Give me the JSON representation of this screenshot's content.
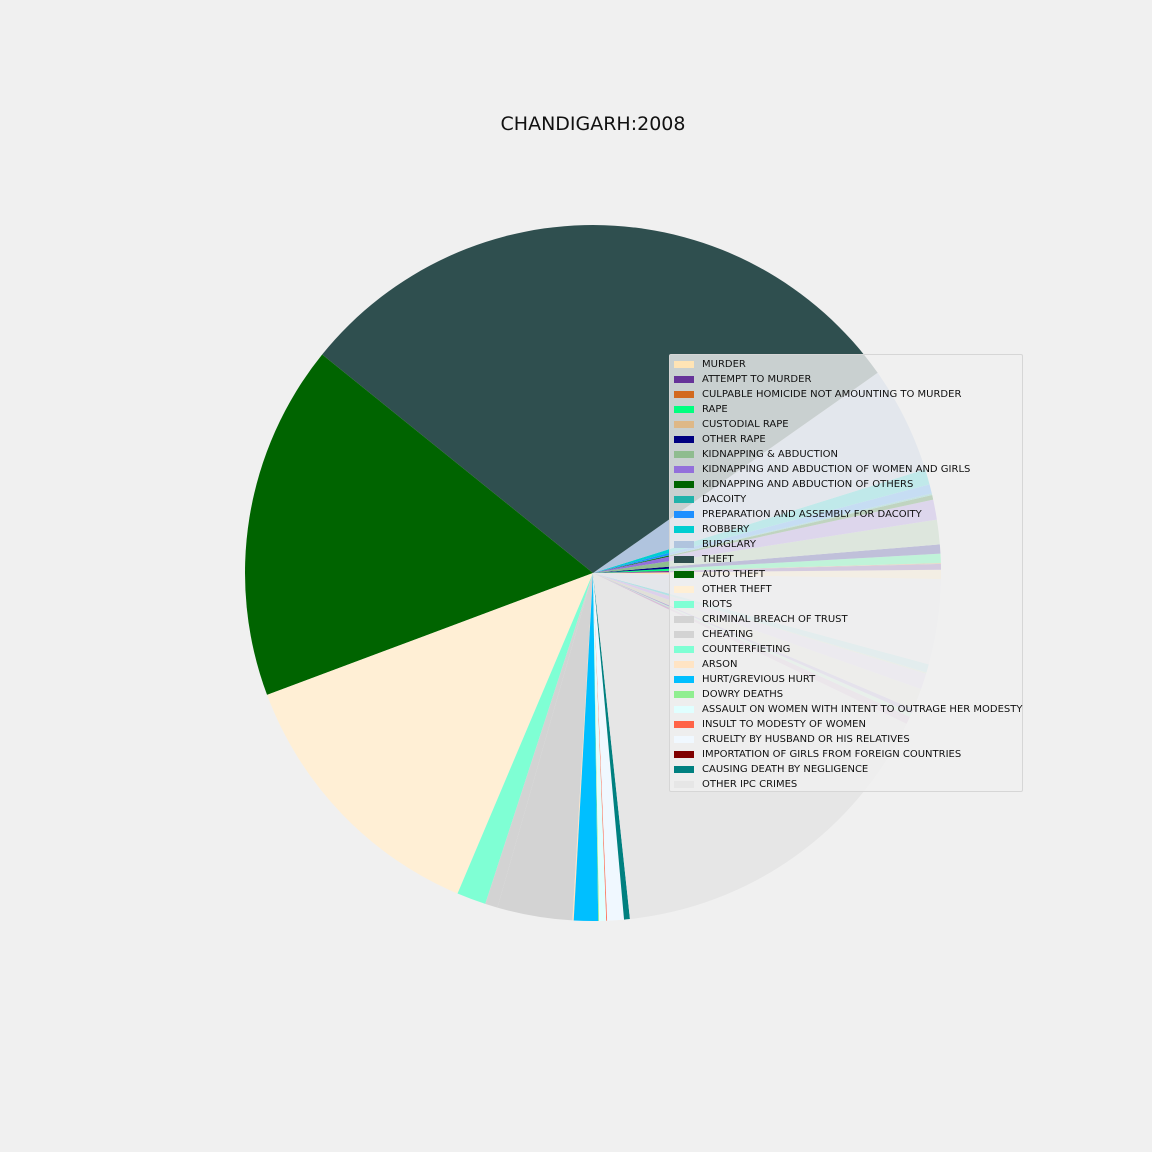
{
  "chart_data": {
    "type": "pie",
    "title": "CHANDIGARH:2008",
    "start_angle_deg": -1,
    "direction": "counterclockwise",
    "legend_position": "right",
    "slices": [
      {
        "label": "MURDER",
        "value": 22,
        "color": "#ffe4b5"
      },
      {
        "label": "ATTEMPT TO MURDER",
        "value": 14,
        "color": "#663399"
      },
      {
        "label": "CULPABLE HOMICIDE NOT AMOUNTING TO MURDER",
        "value": 2,
        "color": "#d2691e"
      },
      {
        "label": "RAPE",
        "value": 22,
        "color": "#00ff7f"
      },
      {
        "label": "CUSTODIAL RAPE",
        "value": 0,
        "color": "#deb887"
      },
      {
        "label": "OTHER RAPE",
        "value": 22,
        "color": "#000080"
      },
      {
        "label": "KIDNAPPING & ABDUCTION",
        "value": 59,
        "color": "#8fbc8f"
      },
      {
        "label": "KIDNAPPING AND ABDUCTION OF WOMEN AND GIRLS",
        "value": 48,
        "color": "#9370db"
      },
      {
        "label": "KIDNAPPING AND ABDUCTION OF OTHERS",
        "value": 11,
        "color": "#006400"
      },
      {
        "label": "DACOITY",
        "value": 4,
        "color": "#20b2aa"
      },
      {
        "label": "PREPARATION AND ASSEMBLY FOR DACOITY",
        "value": 22,
        "color": "#1e90ff"
      },
      {
        "label": "ROBBERY",
        "value": 37,
        "color": "#00ced1"
      },
      {
        "label": "BURGLARY",
        "value": 255,
        "color": "#b0c4de"
      },
      {
        "label": "THEFT",
        "value": 1520,
        "color": "#2f4f4f"
      },
      {
        "label": "AUTO THEFT",
        "value": 852,
        "color": "#006400"
      },
      {
        "label": "OTHER THEFT",
        "value": 668,
        "color": "#ffefd5"
      },
      {
        "label": "RIOTS",
        "value": 70,
        "color": "#7fffd4"
      },
      {
        "label": "CRIMINAL BREACH OF TRUST",
        "value": 30,
        "color": "#d3d3d3"
      },
      {
        "label": "CHEATING",
        "value": 180,
        "color": "#d3d3d3"
      },
      {
        "label": "COUNTERFIETING",
        "value": 0,
        "color": "#7fffd4"
      },
      {
        "label": "ARSON",
        "value": 3,
        "color": "#ffe4c4"
      },
      {
        "label": "HURT/GREVIOUS HURT",
        "value": 58,
        "color": "#00bfff"
      },
      {
        "label": "DOWRY DEATHS",
        "value": 2,
        "color": "#90ee90"
      },
      {
        "label": "ASSAULT ON WOMEN WITH INTENT TO OUTRAGE HER MODESTY",
        "value": 17,
        "color": "#e0ffff"
      },
      {
        "label": "INSULT TO MODESTY OF WOMEN",
        "value": 2,
        "color": "#ff6347"
      },
      {
        "label": "CRUELTY BY HUSBAND OR HIS RELATIVES",
        "value": 40,
        "color": "#f0f8ff"
      },
      {
        "label": "IMPORTATION OF GIRLS FROM FOREIGN COUNTRIES",
        "value": 0,
        "color": "#800000"
      },
      {
        "label": "CAUSING DEATH BY NEGLIGENCE",
        "value": 14,
        "color": "#008080"
      },
      {
        "label": "OTHER IPC CRIMES",
        "value": 835,
        "color": "#e6e6e6"
      },
      {
        "label": "",
        "value": 18,
        "color": "#d8bfd8"
      },
      {
        "label": "",
        "value": 10,
        "color": "#c8f0d8"
      },
      {
        "label": "",
        "value": 10,
        "color": "#b8a9d9"
      },
      {
        "label": "",
        "value": 51,
        "color": "#e0e0d8"
      },
      {
        "label": "",
        "value": 38,
        "color": "#ddd0ec"
      },
      {
        "label": "",
        "value": 3,
        "color": "#cfe0c8"
      },
      {
        "label": "",
        "value": 20,
        "color": "#b0e0e6"
      },
      {
        "label": "",
        "value": 204,
        "color": "#e4e6ea"
      }
    ]
  }
}
